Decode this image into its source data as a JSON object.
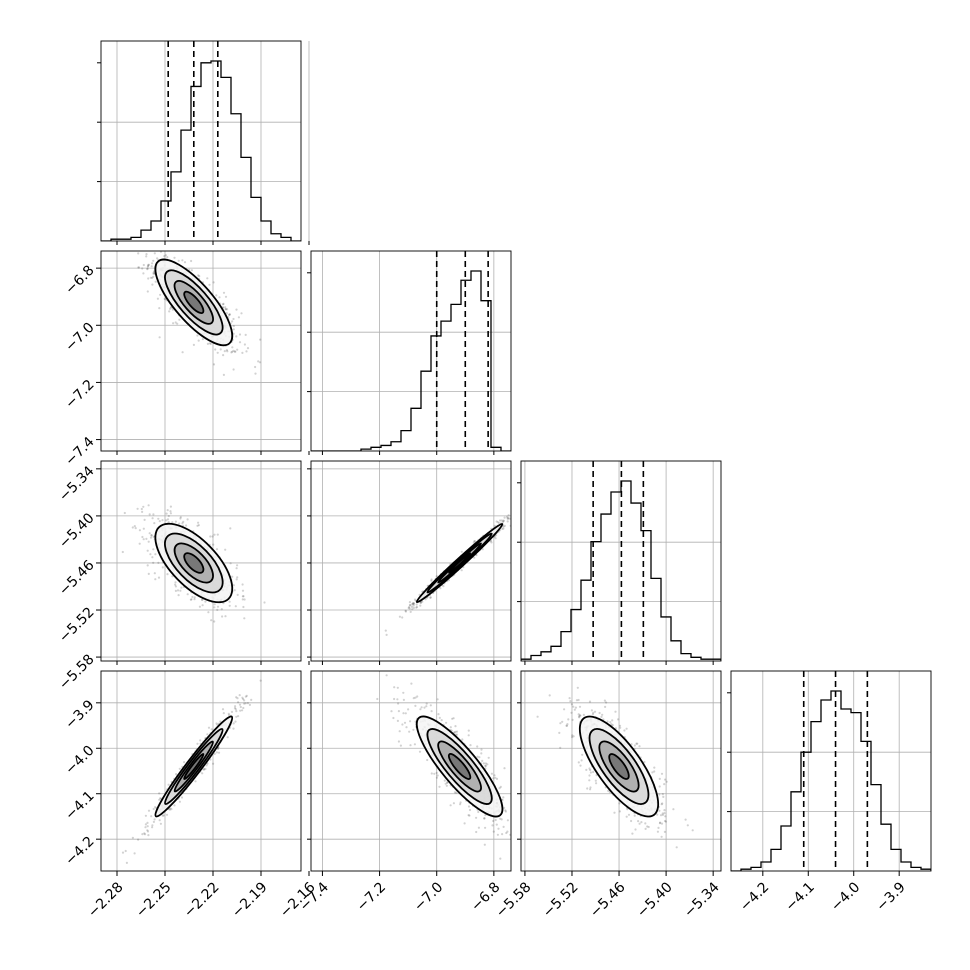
{
  "chart_data": {
    "type": "corner",
    "parameters": [
      {
        "ticks": [
          -2.28,
          -2.25,
          -2.22,
          -2.19,
          -2.16
        ],
        "tick_labels": [
          "−2.28",
          "−2.25",
          "−2.22",
          "−2.19",
          "−2.16"
        ],
        "range": [
          -2.29,
          -2.165
        ],
        "quantiles": [
          -2.248,
          -2.232,
          -2.217
        ]
      },
      {
        "ticks": [
          -7.4,
          -7.2,
          -7.0,
          -6.8
        ],
        "tick_labels": [
          "−7.4",
          "−7.2",
          "−7.0",
          "−6.8"
        ],
        "range": [
          -7.44,
          -6.74
        ],
        "quantiles": [
          -7.0,
          -6.9,
          -6.82
        ]
      },
      {
        "ticks": [
          -5.58,
          -5.52,
          -5.46,
          -5.4,
          -5.34
        ],
        "tick_labels": [
          "−5.58",
          "−5.52",
          "−5.46",
          "−5.40",
          "−5.34"
        ],
        "range": [
          -5.585,
          -5.33
        ],
        "quantiles": [
          -5.493,
          -5.457,
          -5.429
        ]
      },
      {
        "ticks": [
          -4.2,
          -4.1,
          -4.0,
          -3.9
        ],
        "tick_labels": [
          "−4.2",
          "−4.1",
          "−4.0",
          "−3.9"
        ],
        "range": [
          -4.27,
          -3.83
        ],
        "quantiles": [
          -4.11,
          -4.04,
          -3.97
        ]
      }
    ],
    "histograms": [
      [
        0,
        1,
        1,
        2,
        6,
        11,
        22,
        38,
        61,
        85,
        98,
        99,
        90,
        70,
        46,
        24,
        11,
        4,
        2,
        0
      ],
      [
        0,
        0,
        0,
        0,
        0,
        1,
        2,
        3,
        5,
        11,
        23,
        43,
        62,
        70,
        79,
        92,
        97,
        81,
        2,
        0
      ],
      [
        1,
        3,
        5,
        8,
        16,
        28,
        44,
        65,
        80,
        92,
        98,
        86,
        71,
        45,
        24,
        11,
        4,
        2,
        1,
        1
      ],
      [
        0,
        1,
        2,
        5,
        12,
        25,
        44,
        66,
        83,
        95,
        100,
        90,
        88,
        72,
        48,
        26,
        12,
        5,
        2,
        1
      ]
    ],
    "pairs": [
      {
        "x": 0,
        "y": 1,
        "mean": [
          -2.232,
          -6.92
        ],
        "sd": [
          0.012,
          0.075
        ],
        "rho": -0.78
      },
      {
        "x": 0,
        "y": 2,
        "mean": [
          -2.232,
          -5.46
        ],
        "sd": [
          0.012,
          0.025
        ],
        "rho": -0.65
      },
      {
        "x": 1,
        "y": 2,
        "mean": [
          -6.92,
          -5.46
        ],
        "sd": [
          0.075,
          0.025
        ],
        "rho": 0.99
      },
      {
        "x": 0,
        "y": 3,
        "mean": [
          -2.232,
          -4.04
        ],
        "sd": [
          0.012,
          0.055
        ],
        "rho": 0.97
      },
      {
        "x": 1,
        "y": 3,
        "mean": [
          -6.92,
          -4.04
        ],
        "sd": [
          0.075,
          0.055
        ],
        "rho": -0.85
      },
      {
        "x": 2,
        "y": 3,
        "mean": [
          -5.46,
          -4.04
        ],
        "sd": [
          0.025,
          0.055
        ],
        "rho": -0.75
      }
    ],
    "contour_levels_sigma": [
      0.5,
      1.0,
      1.5,
      2.0
    ],
    "grid": true,
    "xlabel": "",
    "ylabel": "",
    "title": ""
  }
}
